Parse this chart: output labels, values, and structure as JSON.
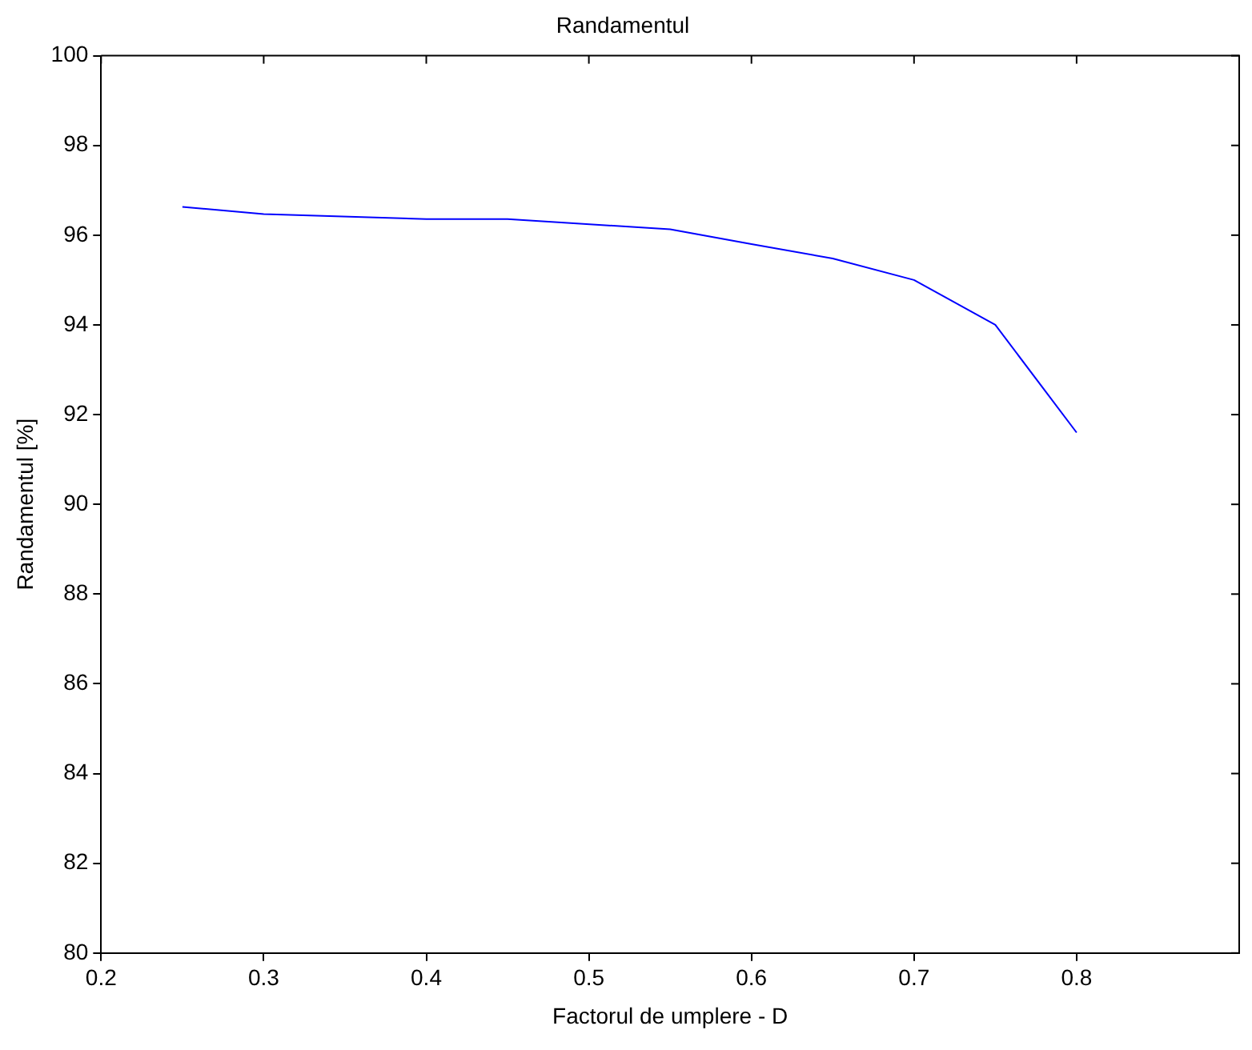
{
  "chart_data": {
    "type": "line",
    "title": "Randamentul",
    "xlabel": "Factorul de umplere - D",
    "ylabel": "Randamentul [%]",
    "series": [
      {
        "color": "#0000ff",
        "x": [
          0.25,
          0.3,
          0.4,
          0.45,
          0.55,
          0.6,
          0.65,
          0.7,
          0.75,
          0.8
        ],
        "values": [
          96.63,
          96.47,
          96.36,
          96.36,
          96.13,
          95.8,
          95.48,
          95.0,
          94.0,
          91.6
        ]
      }
    ],
    "xlim": [
      0.2,
      0.9
    ],
    "xticks": [
      0.2,
      0.3,
      0.4,
      0.5,
      0.6,
      0.7,
      0.8
    ],
    "ylim": [
      80,
      100
    ],
    "yticks": [
      80,
      82,
      84,
      86,
      88,
      90,
      92,
      94,
      96,
      98,
      100
    ],
    "grid": false,
    "legend": false,
    "marker": "none",
    "line_style": "solid"
  }
}
